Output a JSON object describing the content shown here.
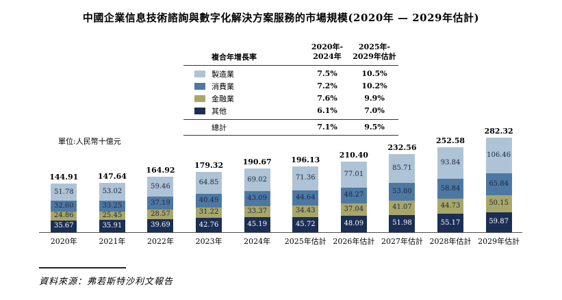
{
  "title": "中國企業信息技術諮詢與數字化解決方案服務的市場規模(2020年 — 2029年估計)",
  "unit_label": "單位:人民幣十億元",
  "source": "資料來源：弗若斯特沙利文報告",
  "legend": {
    "header": {
      "label": "複合年增長率",
      "col1": "2020年-\n2024年",
      "col2": "2025年-\n2029年估計"
    },
    "rows": [
      {
        "label": "製造業",
        "color": "#aec3d5",
        "col1": "7.5%",
        "col2": "10.5%"
      },
      {
        "label": "消費業",
        "color": "#4d78a3",
        "col1": "7.2%",
        "col2": "10.2%"
      },
      {
        "label": "金融業",
        "color": "#a9a768",
        "col1": "7.6%",
        "col2": "9.9%"
      },
      {
        "label": "其他",
        "color": "#1b2e54",
        "col1": "6.1%",
        "col2": "7.0%"
      }
    ],
    "total": {
      "label": "總計",
      "col1": "7.1%",
      "col2": "9.5%"
    }
  },
  "chart_data": {
    "type": "bar",
    "subtype": "stacked",
    "title": "中國企業信息技術諮詢與數字化解決方案服務的市場規模(2020年 — 2029年估計)",
    "unit": "人民幣十億元",
    "categories": [
      "2020年",
      "2021年",
      "2022年",
      "2023年",
      "2024年",
      "2025年估計",
      "2026年估計",
      "2027年估計",
      "2028年估計",
      "2029年估計"
    ],
    "totals": [
      144.91,
      147.64,
      164.92,
      179.32,
      190.67,
      196.13,
      210.4,
      232.56,
      252.58,
      282.32
    ],
    "series": [
      {
        "key": "other",
        "name": "其他",
        "color": "#1b2e54",
        "text_color": "#ffffff",
        "values": [
          35.67,
          35.91,
          39.69,
          42.76,
          45.19,
          45.72,
          48.09,
          51.98,
          55.17,
          59.87
        ]
      },
      {
        "key": "finance",
        "name": "金融業",
        "color": "#a9a768",
        "text_color": "#1a2740",
        "values": [
          24.86,
          25.45,
          28.57,
          31.22,
          33.37,
          34.43,
          37.04,
          41.07,
          44.73,
          50.15
        ]
      },
      {
        "key": "consumer",
        "name": "消費業",
        "color": "#4d78a3",
        "text_color": "#1a2740",
        "values": [
          32.6,
          33.25,
          37.19,
          40.49,
          43.09,
          44.64,
          48.27,
          53.8,
          58.84,
          65.84
        ]
      },
      {
        "key": "manufacturing",
        "name": "製造業",
        "color": "#aec3d5",
        "text_color": "#1a2740",
        "values": [
          51.78,
          53.02,
          59.46,
          64.85,
          69.02,
          71.36,
          77.01,
          85.71,
          93.84,
          106.46
        ]
      }
    ],
    "cagr_table": {
      "header": [
        "複合年增長率",
        "2020年-2024年",
        "2025年-2029年估計"
      ],
      "rows": [
        [
          "製造業",
          "7.5%",
          "10.5%"
        ],
        [
          "消費業",
          "7.2%",
          "10.2%"
        ],
        [
          "金融業",
          "7.6%",
          "9.9%"
        ],
        [
          "其他",
          "6.1%",
          "7.0%"
        ],
        [
          "總計",
          "7.1%",
          "9.5%"
        ]
      ]
    },
    "legend_position": "top",
    "grid": false,
    "stack_order_bottom_to_top": [
      "其他",
      "金融業",
      "消費業",
      "製造業"
    ],
    "source": "資料來源：弗若斯特沙利文報告"
  }
}
